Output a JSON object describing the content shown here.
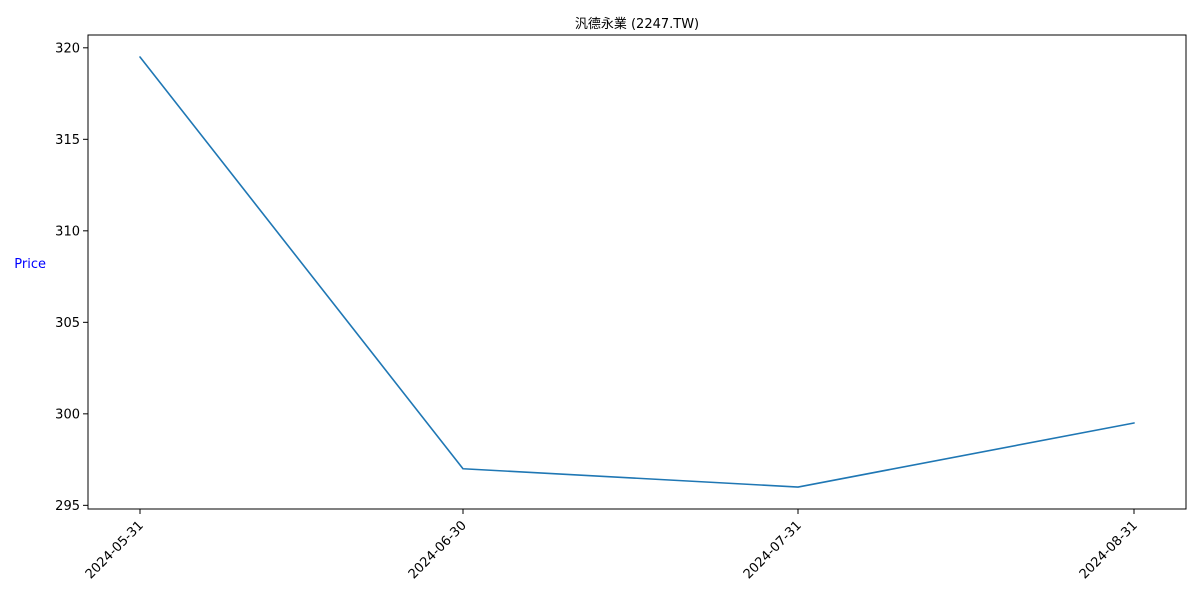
{
  "chart_data": {
    "type": "line",
    "title": "汎德永業 (2247.TW)",
    "xlabel": "",
    "ylabel": "Price",
    "x": [
      "2024-05-31",
      "2024-06-30",
      "2024-07-31",
      "2024-08-31"
    ],
    "series": [
      {
        "values": [
          319.5,
          297.0,
          296.0,
          299.5
        ]
      }
    ],
    "ylim": [
      294.8,
      320.7
    ],
    "yticks": [
      295,
      300,
      305,
      310,
      315,
      320
    ],
    "xtick_labels": [
      "2024-05-31",
      "2024-06-30",
      "2024-07-31",
      "2024-08-31"
    ],
    "xtick_rotation": 45,
    "grid": false,
    "line_color": "#1f77b4",
    "ylabel_color": "#0000ff"
  }
}
